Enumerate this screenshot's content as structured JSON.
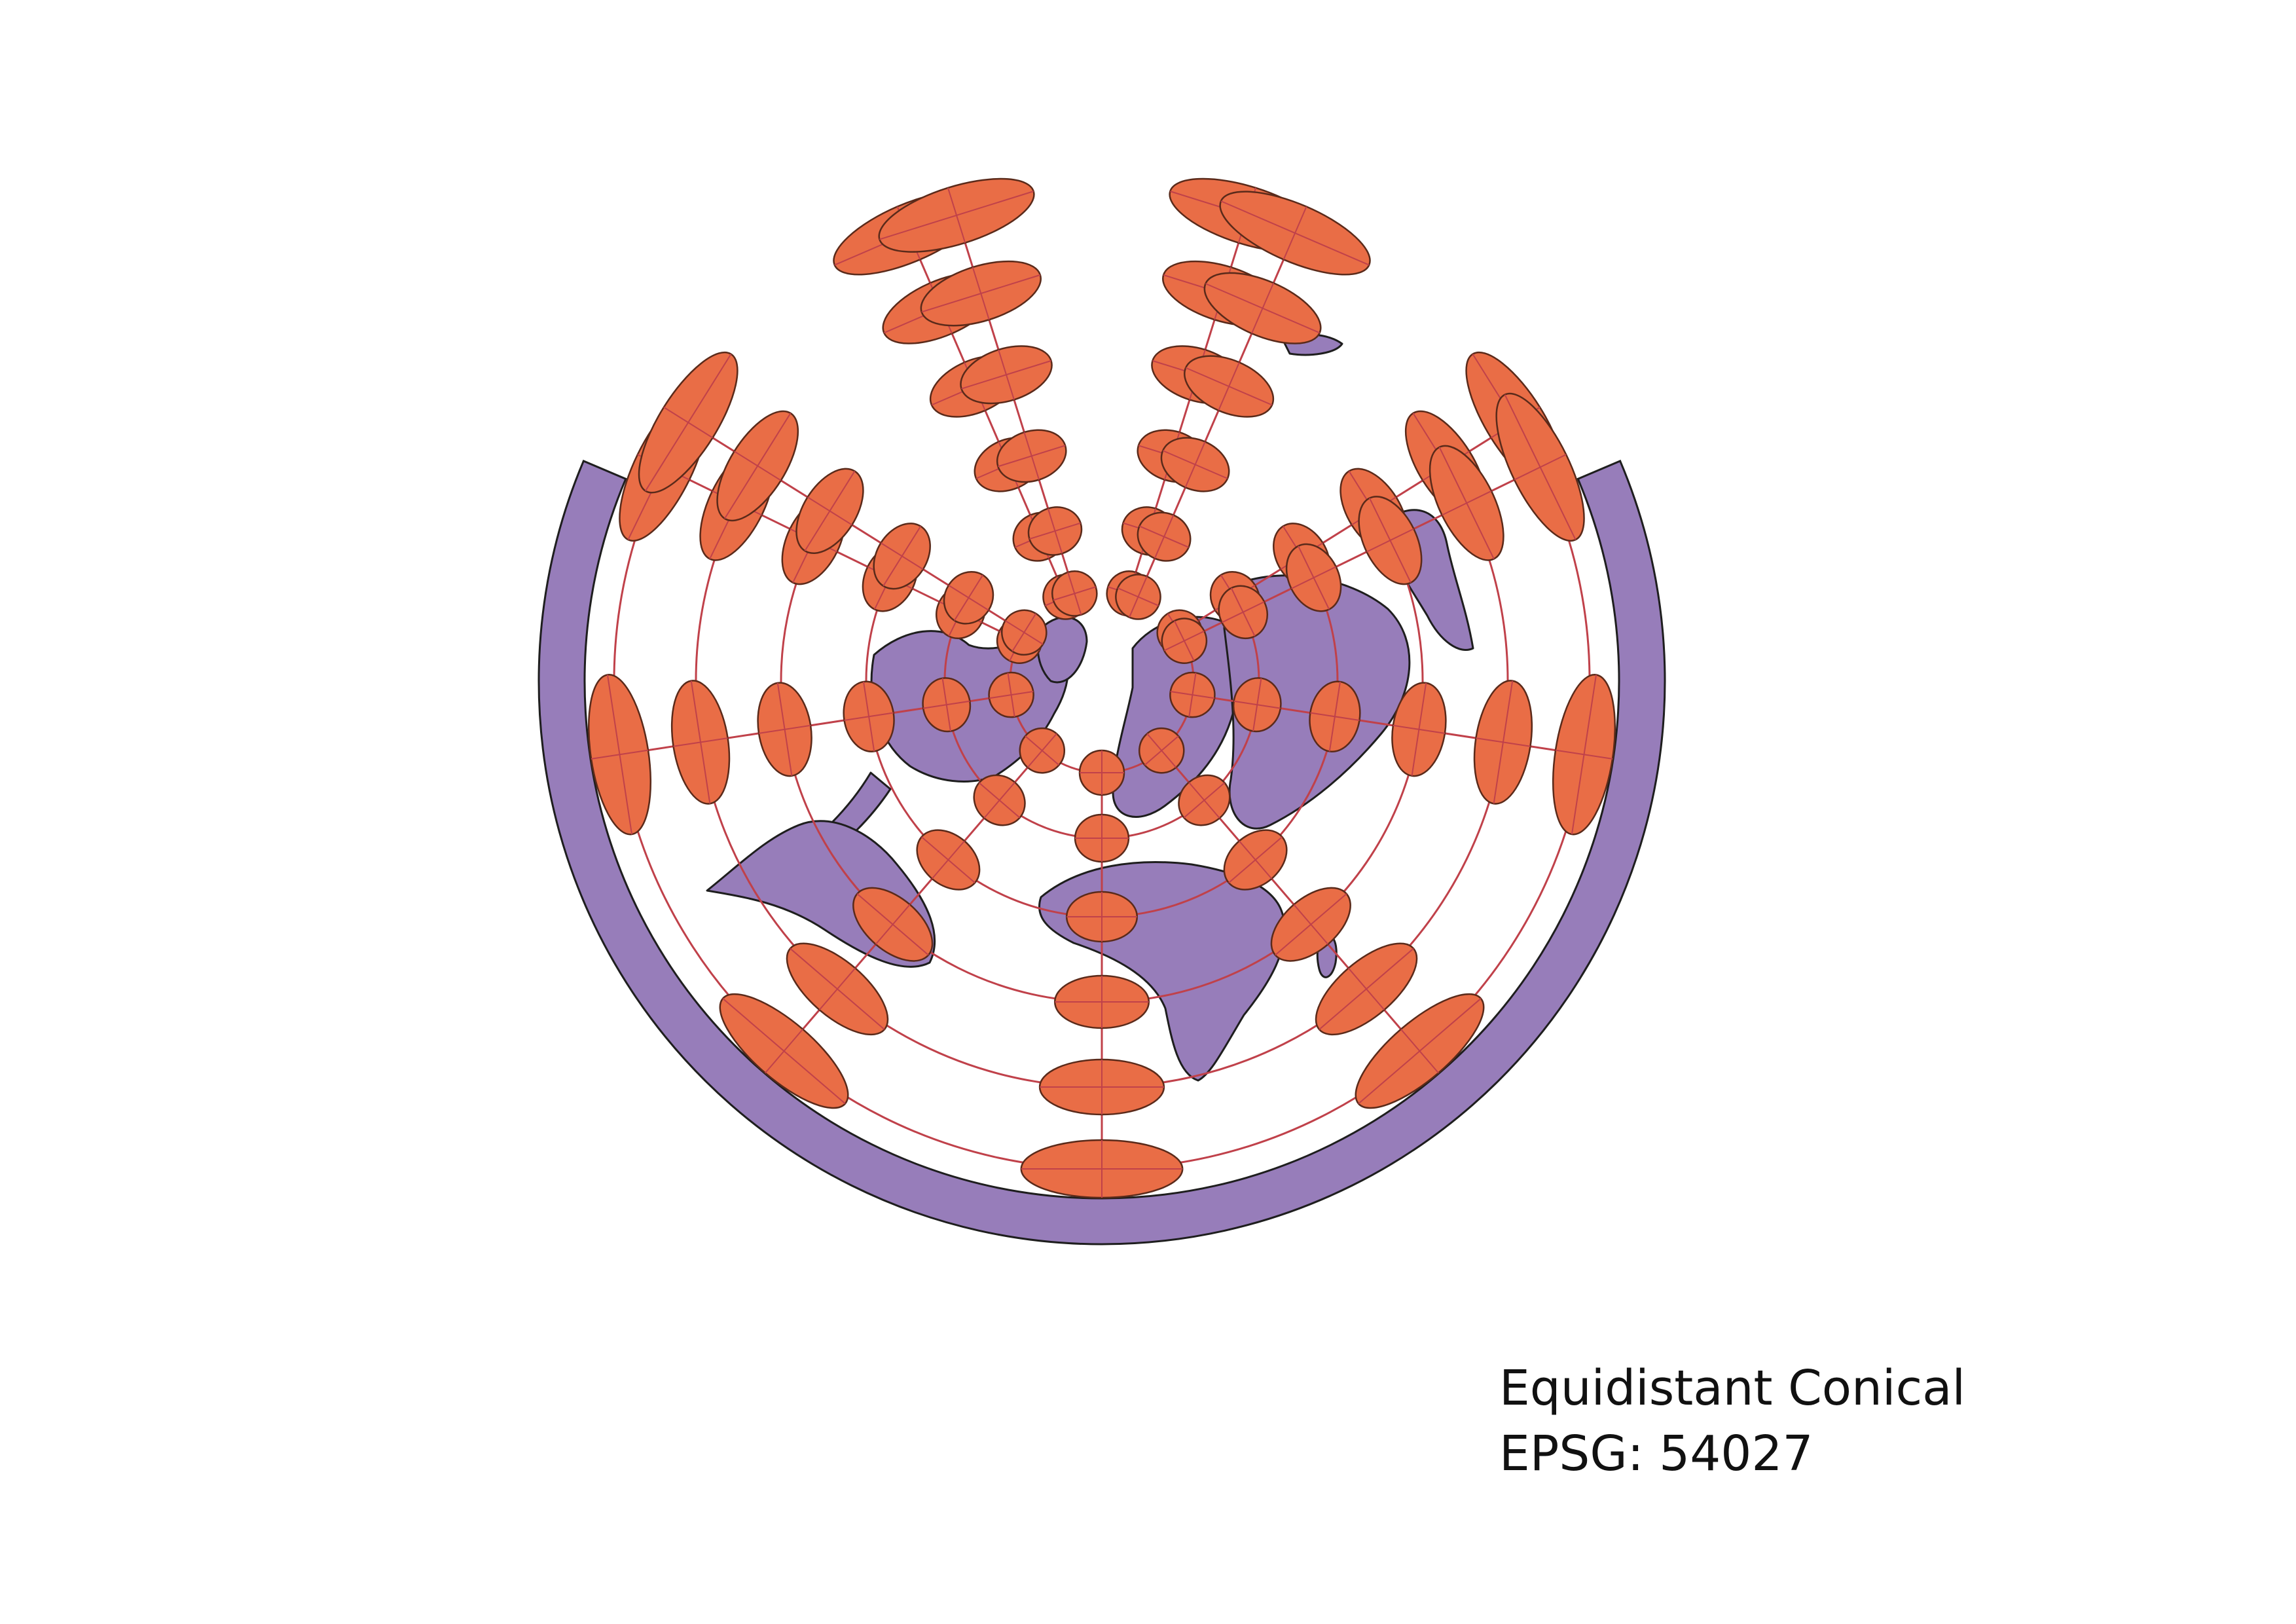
{
  "caption": {
    "projection_name": "Equidistant Conical",
    "epsg_label": "EPSG: 54027"
  },
  "map": {
    "land_color": "#977dba",
    "land_outline_color": "#1e1e1e",
    "ocean_color": "#ffffff",
    "indicatrix_color": "#e96d46",
    "indicatrix_outline_color": "#5a2a1a",
    "graticule_color": "#c0414a"
  }
}
